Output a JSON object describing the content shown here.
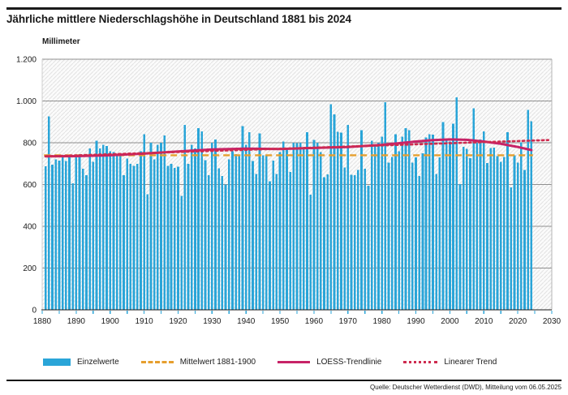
{
  "footer": {
    "source": "Quelle: Deutscher Wetterdienst (DWD), Mitteilung vom 06.05.2025"
  },
  "legend": [
    {
      "id": "einzelwerte",
      "label": "Einzelwerte",
      "swatch": "bar"
    },
    {
      "id": "mittelwert",
      "label": "Mittelwert 1881-1900",
      "swatch": "dashed"
    },
    {
      "id": "loess",
      "label": "LOESS-Trendlinie",
      "swatch": "solid"
    },
    {
      "id": "linear",
      "label": "Linearer Trend",
      "swatch": "dotted"
    }
  ],
  "colors": {
    "bars": "#2AA5D8",
    "mean": "#E69F2E",
    "loess": "#C72367",
    "linear": "#CE2B4F",
    "grid": "#8f8f8f",
    "axis": "#1a1a1a",
    "hatch": "#e2e2e2",
    "plot_bg": "#fbfbfb"
  },
  "chart_data": {
    "type": "bar",
    "title": "Jährliche mittlere Niederschlagshöhe in Deutschland 1881 bis 2024",
    "xlabel": "",
    "ylabel": "Millimeter",
    "ylim": [
      0,
      1200
    ],
    "xlim": [
      1880,
      2030
    ],
    "grid": true,
    "legend_position": "bottom",
    "y_tick_step": 200,
    "y_tick_labels": [
      "0",
      "200",
      "400",
      "600",
      "800",
      "1.000",
      "1.200"
    ],
    "x_ticks": [
      1880,
      1890,
      1900,
      1910,
      1920,
      1930,
      1940,
      1950,
      1960,
      1970,
      1980,
      1990,
      2000,
      2010,
      2020,
      2030
    ],
    "minor_tick_step": 5,
    "x_start": 1881,
    "x_end": 2024,
    "values": [
      687,
      926,
      695,
      720,
      715,
      730,
      712,
      730,
      605,
      740,
      745,
      676,
      644,
      772,
      708,
      810,
      772,
      791,
      785,
      759,
      755,
      740,
      750,
      645,
      725,
      700,
      690,
      700,
      760,
      840,
      553,
      800,
      720,
      790,
      800,
      835,
      690,
      700,
      680,
      685,
      545,
      885,
      700,
      790,
      772,
      870,
      855,
      717,
      645,
      800,
      815,
      678,
      640,
      600,
      720,
      760,
      745,
      740,
      880,
      790,
      850,
      712,
      650,
      845,
      740,
      740,
      615,
      715,
      650,
      755,
      805,
      770,
      660,
      800,
      798,
      800,
      770,
      850,
      551,
      813,
      800,
      755,
      635,
      648,
      985,
      935,
      853,
      848,
      681,
      885,
      646,
      645,
      670,
      860,
      675,
      594,
      810,
      786,
      800,
      830,
      994,
      705,
      733,
      840,
      759,
      830,
      870,
      860,
      705,
      730,
      640,
      750,
      825,
      840,
      838,
      650,
      730,
      900,
      813,
      805,
      891,
      1018,
      602,
      780,
      770,
      727,
      965,
      800,
      816,
      855,
      703,
      775,
      777,
      735,
      709,
      733,
      850,
      586,
      740,
      705,
      801,
      669,
      958,
      903
    ],
    "series": [
      {
        "name": "Einzelwerte",
        "type": "bar"
      },
      {
        "name": "Mittelwert 1881-1900",
        "type": "hline",
        "value": 740,
        "style": "dashed"
      },
      {
        "name": "LOESS-Trendlinie",
        "type": "line",
        "style": "solid",
        "points": [
          [
            1881,
            735
          ],
          [
            1890,
            736
          ],
          [
            1900,
            740
          ],
          [
            1910,
            748
          ],
          [
            1920,
            758
          ],
          [
            1930,
            768
          ],
          [
            1940,
            772
          ],
          [
            1950,
            770
          ],
          [
            1960,
            775
          ],
          [
            1970,
            780
          ],
          [
            1980,
            790
          ],
          [
            1990,
            806
          ],
          [
            1995,
            813
          ],
          [
            2000,
            816
          ],
          [
            2005,
            814
          ],
          [
            2010,
            806
          ],
          [
            2015,
            795
          ],
          [
            2020,
            780
          ],
          [
            2024,
            765
          ]
        ]
      },
      {
        "name": "Linearer Trend",
        "type": "line",
        "style": "dotted",
        "points": [
          [
            1881,
            735
          ],
          [
            2029,
            813
          ]
        ]
      }
    ]
  }
}
